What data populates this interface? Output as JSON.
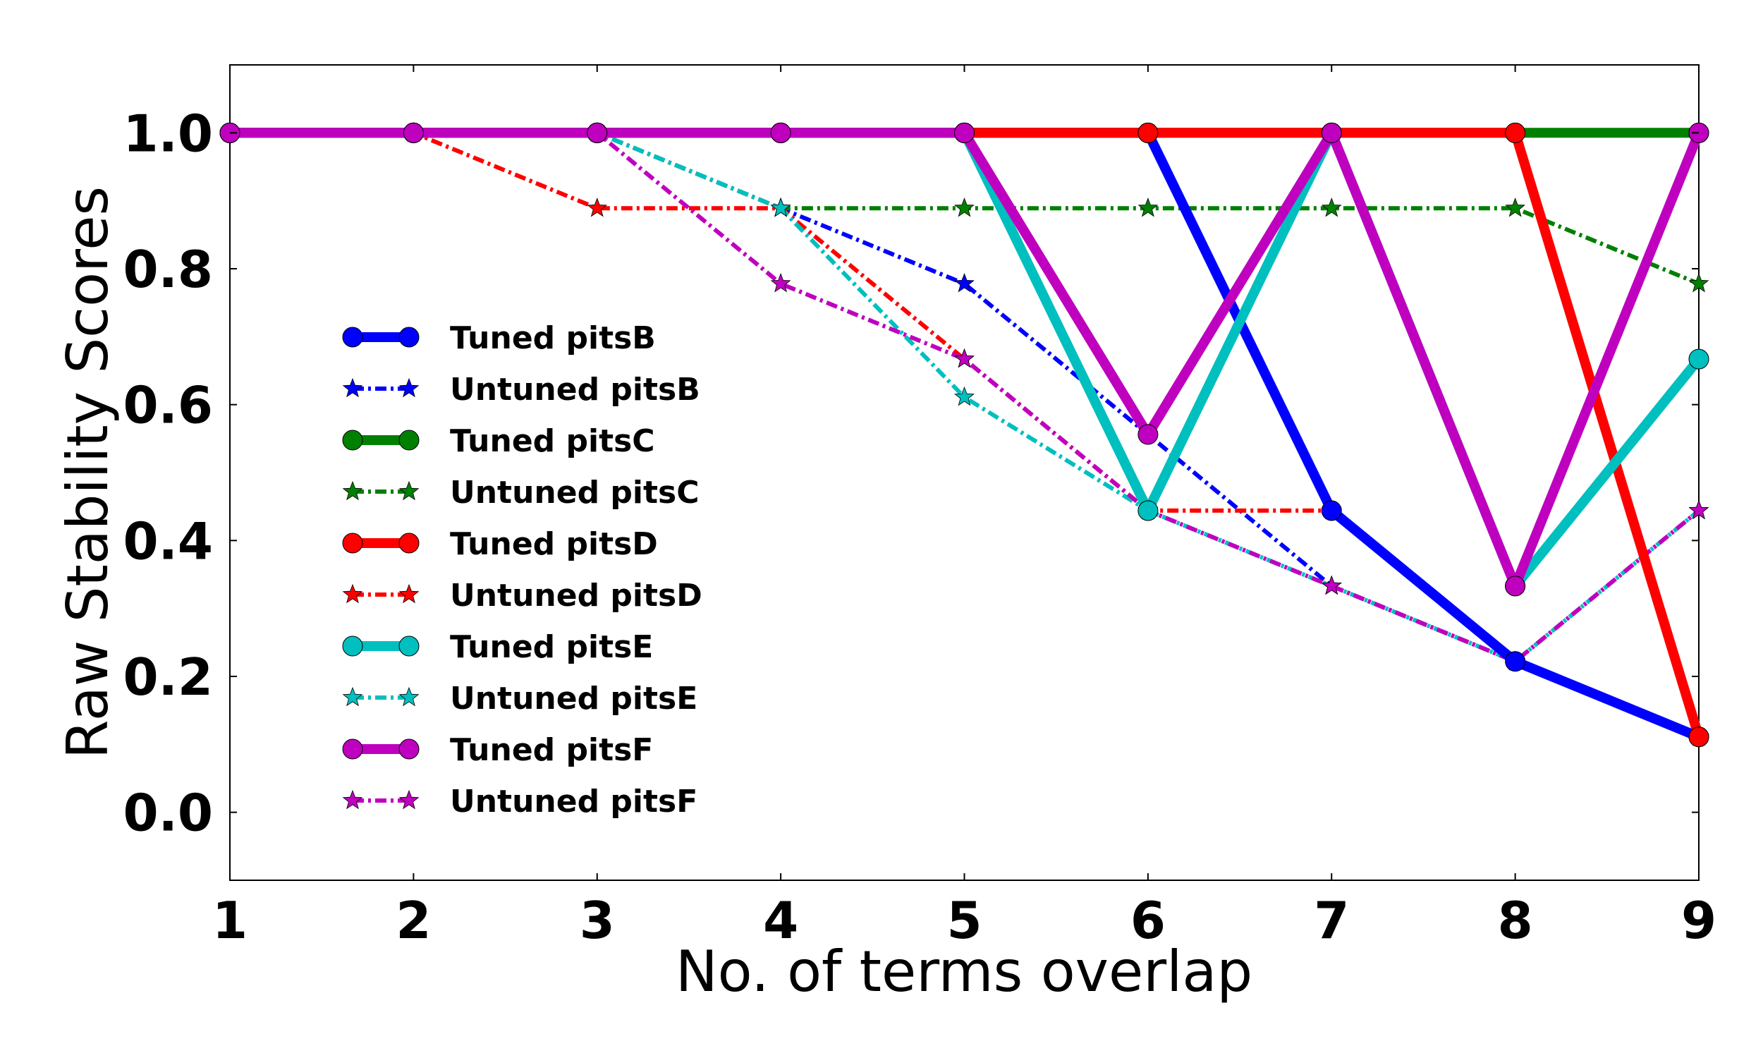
{
  "chart_data": {
    "type": "line",
    "title": "",
    "xlabel": "No. of terms overlap",
    "ylabel": "Raw Stability Scores",
    "x": [
      1,
      2,
      3,
      4,
      5,
      6,
      7,
      8,
      9
    ],
    "xlim": [
      1,
      9
    ],
    "ylim": [
      -0.1,
      1.1
    ],
    "xticks": [
      "1",
      "2",
      "3",
      "4",
      "5",
      "6",
      "7",
      "8",
      "9"
    ],
    "yticks": [
      "0.0",
      "0.2",
      "0.4",
      "0.6",
      "0.8",
      "1.0"
    ],
    "grid": false,
    "legend_position": "center-left",
    "series": [
      {
        "name": "Tuned pitsB",
        "color": "#0000ff",
        "style": "solid",
        "marker": "circle",
        "values": [
          1.0,
          1.0,
          1.0,
          1.0,
          1.0,
          1.0,
          0.444,
          0.222,
          0.111
        ]
      },
      {
        "name": "Untuned pitsB",
        "color": "#0000ff",
        "style": "dashdot",
        "marker": "star",
        "values": [
          1.0,
          1.0,
          1.0,
          0.889,
          0.778,
          0.556,
          0.333,
          0.222,
          0.111
        ]
      },
      {
        "name": "Tuned pitsC",
        "color": "#008000",
        "style": "solid",
        "marker": "circle",
        "values": [
          1.0,
          1.0,
          1.0,
          1.0,
          1.0,
          1.0,
          1.0,
          1.0,
          1.0
        ]
      },
      {
        "name": "Untuned pitsC",
        "color": "#008000",
        "style": "dashdot",
        "marker": "star",
        "values": [
          1.0,
          1.0,
          1.0,
          0.889,
          0.889,
          0.889,
          0.889,
          0.889,
          0.778
        ]
      },
      {
        "name": "Tuned pitsD",
        "color": "#ff0000",
        "style": "solid",
        "marker": "circle",
        "values": [
          1.0,
          1.0,
          1.0,
          1.0,
          1.0,
          1.0,
          1.0,
          1.0,
          0.111
        ]
      },
      {
        "name": "Untuned pitsD",
        "color": "#ff0000",
        "style": "dashdot",
        "marker": "star",
        "values": [
          1.0,
          1.0,
          0.889,
          0.889,
          0.667,
          0.444,
          0.444,
          0.222,
          0.111
        ]
      },
      {
        "name": "Tuned pitsE",
        "color": "#00bfbf",
        "style": "solid",
        "marker": "circle",
        "values": [
          1.0,
          1.0,
          1.0,
          1.0,
          1.0,
          0.444,
          1.0,
          0.333,
          0.667
        ]
      },
      {
        "name": "Untuned pitsE",
        "color": "#00bfbf",
        "style": "dashdot",
        "marker": "star",
        "values": [
          1.0,
          1.0,
          1.0,
          0.889,
          0.611,
          0.444,
          0.333,
          0.222,
          0.444
        ]
      },
      {
        "name": "Tuned pitsF",
        "color": "#bf00bf",
        "style": "solid",
        "marker": "circle",
        "values": [
          1.0,
          1.0,
          1.0,
          1.0,
          1.0,
          0.556,
          1.0,
          0.333,
          1.0
        ]
      },
      {
        "name": "Untuned pitsF",
        "color": "#bf00bf",
        "style": "dashdot",
        "marker": "star",
        "values": [
          1.0,
          1.0,
          1.0,
          0.778,
          0.667,
          0.444,
          0.333,
          0.222,
          0.444
        ]
      }
    ]
  }
}
